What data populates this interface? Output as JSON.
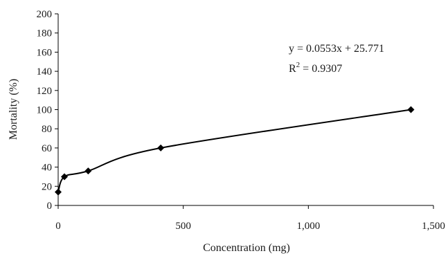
{
  "chart_data": {
    "type": "line",
    "title": "",
    "xlabel": "Concentration (mg)",
    "ylabel": "Mortality (%)",
    "xlim": [
      0,
      1500
    ],
    "ylim": [
      0,
      200
    ],
    "x_ticks": [
      0,
      500,
      1000,
      1500
    ],
    "x_tick_labels": [
      "0",
      "500",
      "1,000",
      "1,500"
    ],
    "y_ticks": [
      0,
      20,
      40,
      60,
      80,
      100,
      120,
      140,
      160,
      180,
      200
    ],
    "y_tick_labels": [
      "0",
      "20",
      "40",
      "60",
      "80",
      "100",
      "120",
      "140",
      "160",
      "180",
      "200"
    ],
    "grid": false,
    "legend": "none",
    "series": [
      {
        "marker": "diamond",
        "line": "smoothed",
        "color": "#000000",
        "points": [
          {
            "x": 0,
            "y": 14
          },
          {
            "x": 25,
            "y": 30
          },
          {
            "x": 120,
            "y": 36
          },
          {
            "x": 410,
            "y": 60
          },
          {
            "x": 1410,
            "y": 100
          }
        ]
      }
    ],
    "annotations": {
      "equation": "y = 0.0553x + 25.771",
      "r2_prefix": "R",
      "r2_exponent": "2",
      "r2_suffix": " = 0.9307"
    }
  }
}
